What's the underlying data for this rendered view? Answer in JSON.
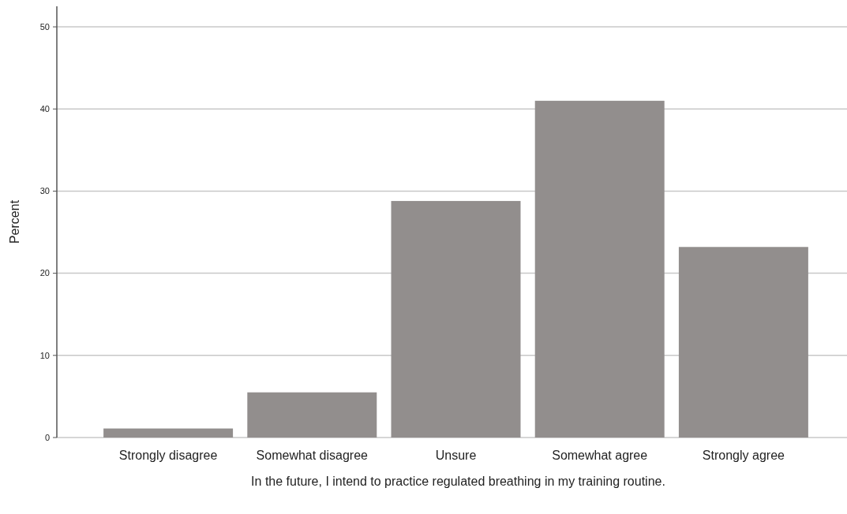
{
  "chart_data": {
    "type": "bar",
    "xlabel": "In the future, I intend to practice regulated breathing in my training routine.",
    "ylabel": "Percent",
    "categories": [
      "Strongly disagree",
      "Somewhat disagree",
      "Unsure",
      "Somewhat agree",
      "Strongly agree"
    ],
    "values": [
      1.1,
      5.5,
      28.8,
      41.0,
      23.2
    ],
    "color": "#928e8d",
    "ylim": [
      0,
      52.5
    ],
    "yticks": [
      0,
      10,
      20,
      30,
      40,
      50
    ],
    "grid": "y"
  }
}
